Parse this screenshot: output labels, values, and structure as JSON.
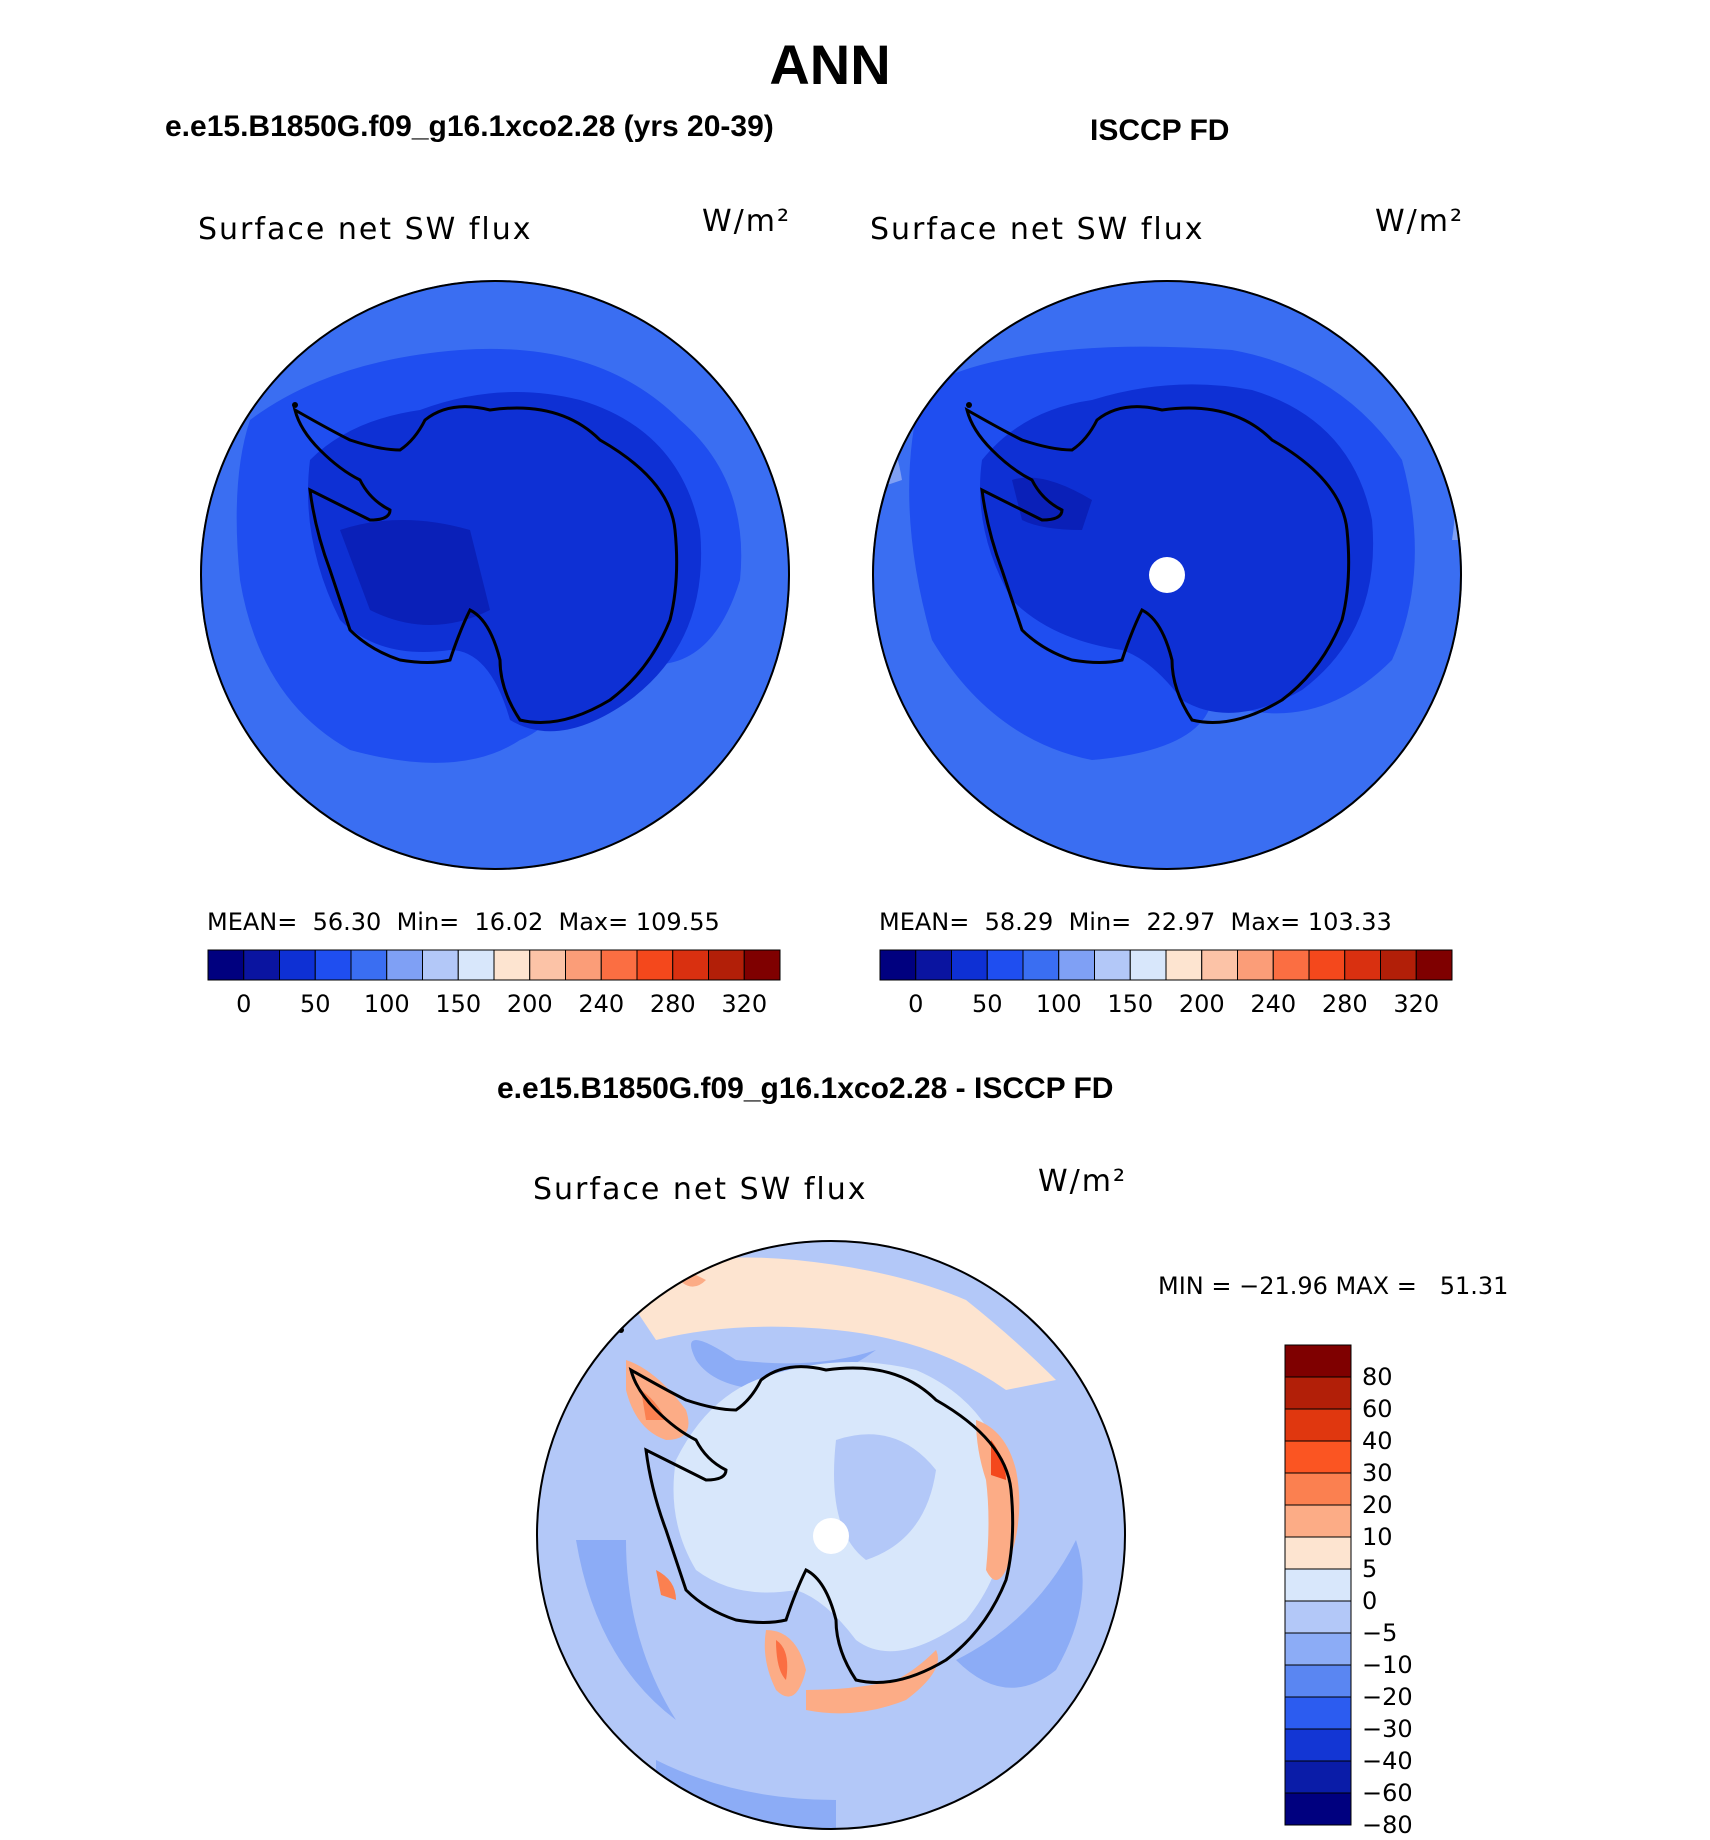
{
  "figure": {
    "season": "ANN",
    "bottom_title": "e.e15.B1850G.f09_g16.1xco2.28 - ISCCP FD"
  },
  "panels": [
    {
      "id": "model",
      "title": "e.e15.B1850G.f09_g16.1xco2.28 (yrs 20-39)",
      "field": "Surface net SW flux",
      "units": "W/m²",
      "stats": "MEAN=  56.30  Min=  16.02  Max= 109.55"
    },
    {
      "id": "obs",
      "title": "ISCCP FD",
      "field": "Surface net SW flux",
      "units": "W/m²",
      "stats": "MEAN=  58.29  Min=  22.97  Max= 103.33"
    }
  ],
  "diff_panel": {
    "field": "Surface net SW flux",
    "units": "W/m²",
    "stats": "MIN = −21.96 MAX =   51.31"
  },
  "abs_colorbar": {
    "colors": [
      "#00007f",
      "#0a14a0",
      "#0e30d4",
      "#1f4ef0",
      "#3a6ef2",
      "#7fa0f5",
      "#b3c8f8",
      "#d8e7fb",
      "#fde4d0",
      "#fcc3a7",
      "#fb9d78",
      "#fb6e42",
      "#f4481c",
      "#d93010",
      "#b21f08",
      "#7f0000"
    ],
    "labels": [
      "0",
      "50",
      "100",
      "150",
      "200",
      "240",
      "280",
      "320"
    ]
  },
  "diff_colorbar": {
    "colors": [
      "#7f0000",
      "#b21f08",
      "#e0370f",
      "#fb5522",
      "#fb8050",
      "#fcac86",
      "#fde4d0",
      "#d8e7fb",
      "#b3c8f8",
      "#8cacf6",
      "#5a86f2",
      "#2c5cf0",
      "#1336d4",
      "#0a1ca8",
      "#00007f"
    ],
    "labels": [
      "80",
      "60",
      "40",
      "30",
      "20",
      "10",
      "5",
      "0",
      "−5",
      "−10",
      "−20",
      "−30",
      "−40",
      "−60",
      "−80"
    ]
  }
}
